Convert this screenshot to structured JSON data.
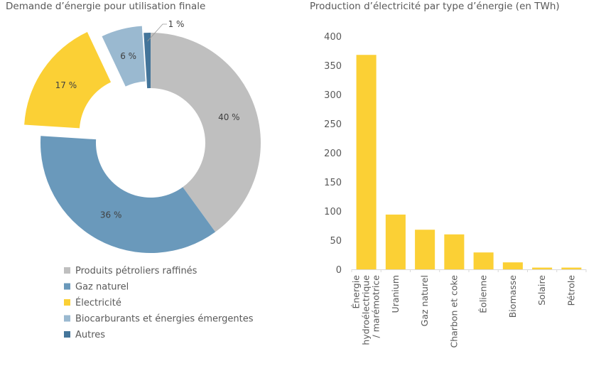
{
  "chart_data": [
    {
      "type": "pie",
      "variant": "donut",
      "title": "Demande d’énergie pour utilisation finale",
      "categories": [
        "Produits pétroliers raffinés",
        "Gaz naturel",
        "Électricité",
        "Biocarburants et énergies émergentes",
        "Autres"
      ],
      "values": [
        40,
        36,
        17,
        6,
        1
      ],
      "labels": [
        "40 %",
        "36 %",
        "17 %",
        "6 %",
        "1 %"
      ],
      "colors": [
        "#BFBFBF",
        "#6A99BB",
        "#FBD035",
        "#9AB9D0",
        "#44759A"
      ],
      "exploded": [
        false,
        false,
        true,
        true,
        false
      ],
      "legend": "bottom"
    },
    {
      "type": "bar",
      "title": "Production d’électricité par type d’énergie (en TWh)",
      "categories": [
        "Énergie hydroélectrique / marémotrice",
        "Uranium",
        "Gaz naturel",
        "Charbon et coke",
        "Éolienne",
        "Biomasse",
        "Solaire",
        "Pétrole"
      ],
      "category_lines": [
        [
          "Énergie",
          "hydroélectrique",
          "/ marémotrice"
        ],
        [
          "Uranium"
        ],
        [
          "Gaz naturel"
        ],
        [
          "Charbon et coke"
        ],
        [
          "Éolienne"
        ],
        [
          "Biomasse"
        ],
        [
          "Solaire"
        ],
        [
          "Pétrole"
        ]
      ],
      "values": [
        368,
        94,
        68,
        60,
        29,
        12,
        3,
        3
      ],
      "ylim": [
        0,
        400
      ],
      "yticks": [
        "0",
        "50",
        "100",
        "150",
        "200",
        "250",
        "300",
        "350",
        "400"
      ],
      "grid": false,
      "color": "#FBD035",
      "xlabel": "",
      "ylabel": ""
    }
  ]
}
